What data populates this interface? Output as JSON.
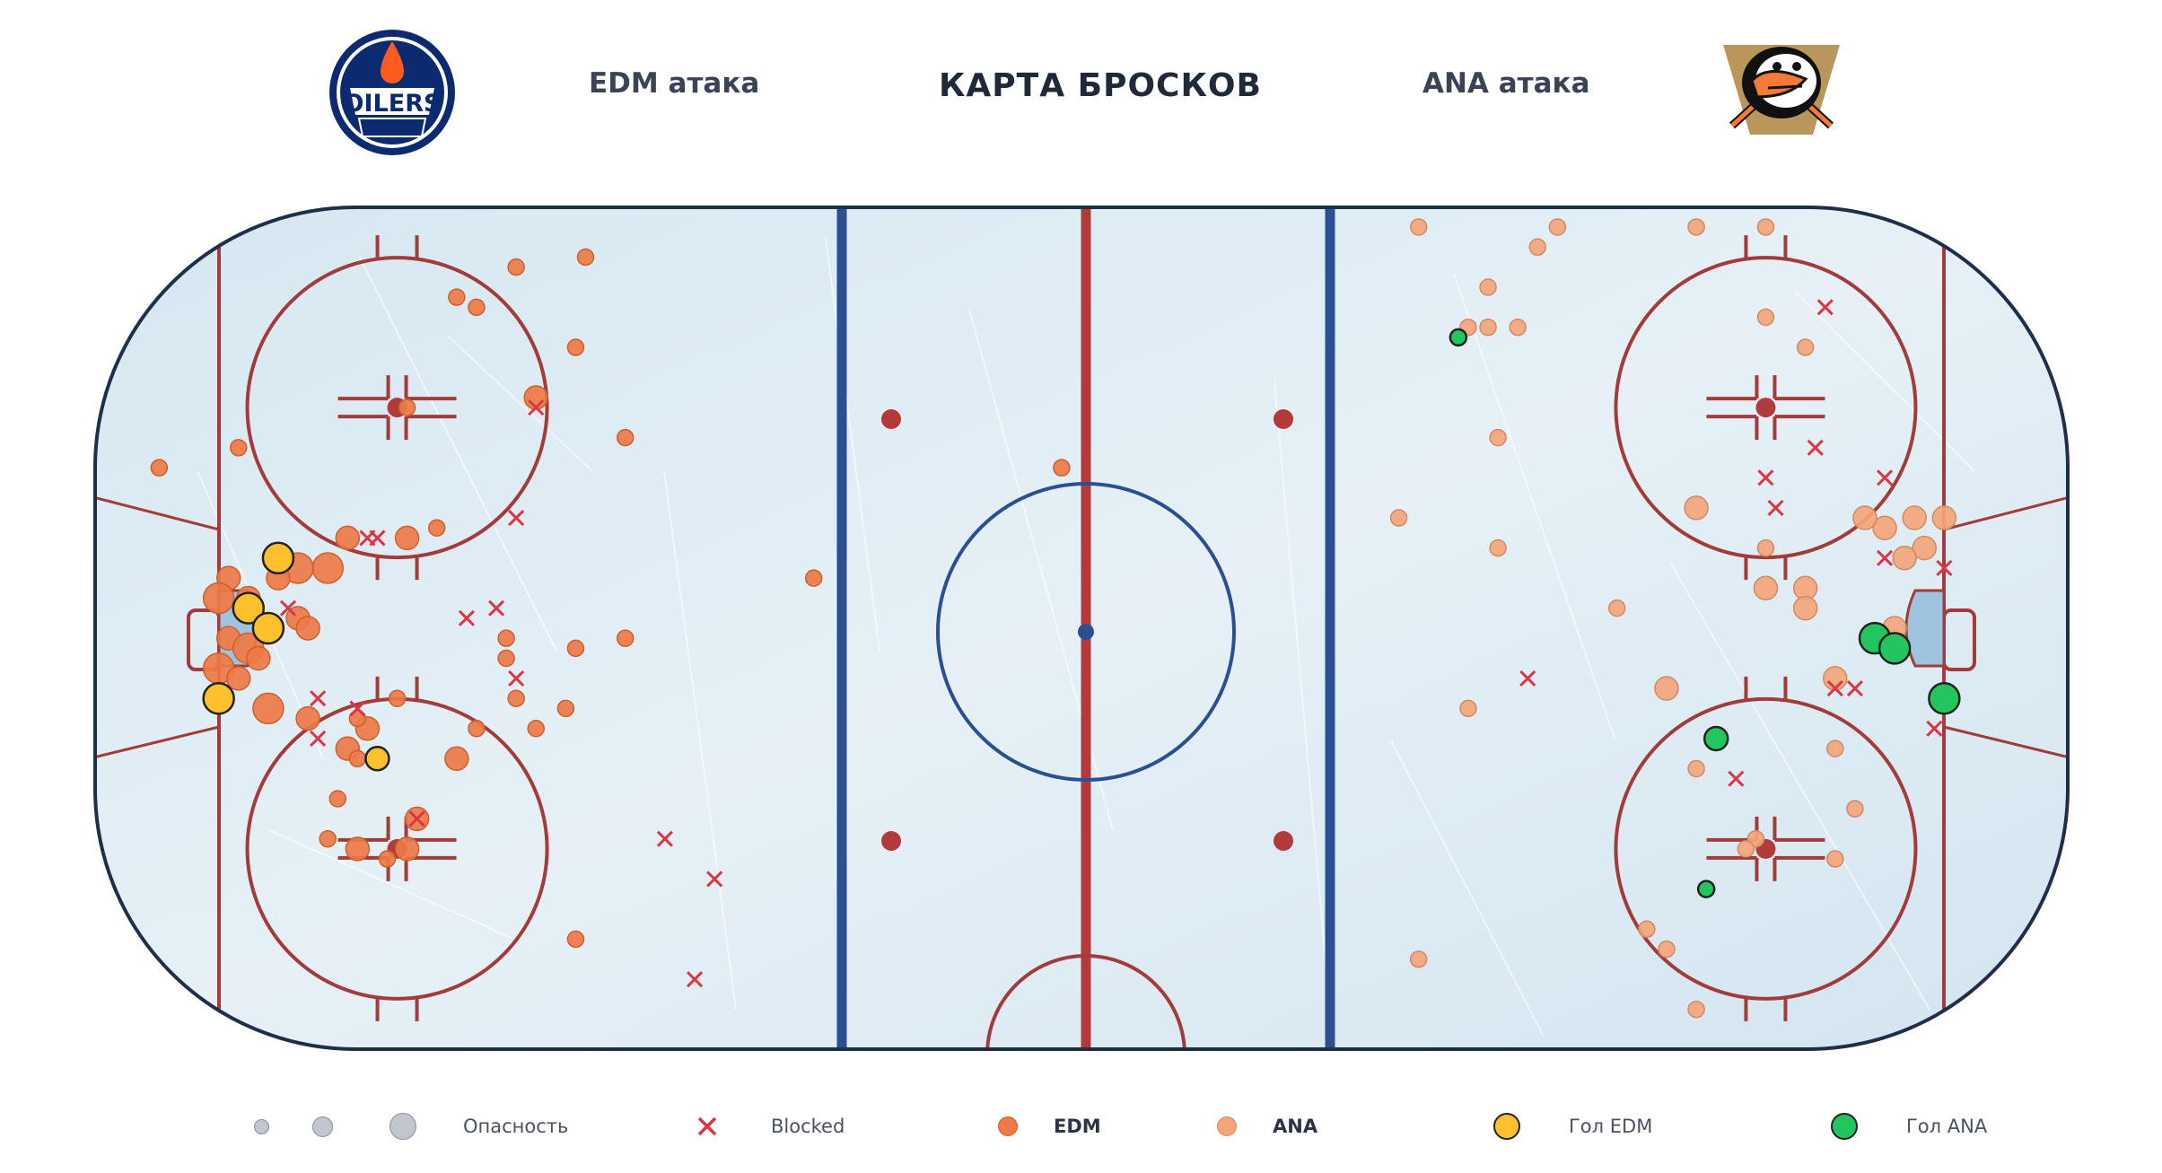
{
  "header": {
    "left_label": "EDM атака",
    "title": "КАРТА БРОСКОВ",
    "right_label": "ANA атака",
    "left_logo": {
      "icon": "oilers-logo",
      "text": "OILERS"
    },
    "right_logo": {
      "icon": "ducks-logo"
    }
  },
  "legend": {
    "danger_label": "Опасность",
    "blocked_label": "Blocked",
    "edm_label": "EDM",
    "ana_label": "ANA",
    "goal_edm_label": "Гол EDM",
    "goal_ana_label": "Гол ANA"
  },
  "colors": {
    "edm_shot": "#ee7a45",
    "ana_shot": "#f4a57a",
    "goal_edm": "#ffc02e",
    "goal_ana": "#22c55e",
    "blocked": "#dc3545",
    "red_line": "#b23a3a",
    "blue_line": "#2a4f93",
    "board": "#1f2f4a",
    "ice": "#dbe9f2"
  },
  "chart_data": {
    "type": "scatter",
    "title": "КАРТА БРОСКОВ",
    "xlabel": "",
    "ylabel": "",
    "xlim": [
      -100,
      100
    ],
    "ylim": [
      -42.5,
      42.5
    ],
    "grid": false,
    "legend_position": "bottom",
    "series": [
      {
        "name": "EDM",
        "marker": "circle",
        "points": [
          [
            -93,
            16,
            1
          ],
          [
            -85,
            18,
            1
          ],
          [
            -68,
            22,
            1
          ],
          [
            -55,
            23,
            2
          ],
          [
            -61,
            32,
            1
          ],
          [
            -63,
            33,
            1
          ],
          [
            -57,
            36,
            1
          ],
          [
            -50,
            37,
            1
          ],
          [
            -51,
            28,
            1
          ],
          [
            -46,
            19,
            1
          ],
          [
            -65,
            10,
            1
          ],
          [
            -68,
            9,
            2
          ],
          [
            -74,
            9,
            2
          ],
          [
            -76,
            6,
            3
          ],
          [
            -79,
            6,
            3
          ],
          [
            -81,
            5,
            2
          ],
          [
            -86,
            5,
            2
          ],
          [
            -84,
            3,
            2
          ],
          [
            -87,
            3,
            3
          ],
          [
            -79,
            1,
            2
          ],
          [
            -78,
            0,
            2
          ],
          [
            -86,
            -1,
            2
          ],
          [
            -84,
            -2,
            3
          ],
          [
            -83,
            -3,
            2
          ],
          [
            -87,
            -4,
            3
          ],
          [
            -85,
            -5,
            2
          ],
          [
            -82,
            -8,
            3
          ],
          [
            -78,
            -9,
            2
          ],
          [
            -72,
            -10,
            2
          ],
          [
            -73,
            -9,
            1
          ],
          [
            -69,
            -7,
            1
          ],
          [
            -74,
            -12,
            2
          ],
          [
            -73,
            -13,
            1
          ],
          [
            -75,
            -17,
            1
          ],
          [
            -73,
            -22,
            2
          ],
          [
            -67,
            -19,
            2
          ],
          [
            -63,
            -13,
            2
          ],
          [
            -61,
            -10,
            1
          ],
          [
            -58,
            -3,
            1
          ],
          [
            -58,
            -1,
            1
          ],
          [
            -51,
            -2,
            1
          ],
          [
            -46,
            -1,
            1
          ],
          [
            -57,
            -7,
            1
          ],
          [
            -52,
            -8,
            1
          ],
          [
            -55,
            -10,
            1
          ],
          [
            -76,
            -21,
            1
          ],
          [
            -68,
            -22,
            2
          ],
          [
            -70,
            -23,
            1
          ],
          [
            -51,
            -31,
            1
          ],
          [
            -27,
            5,
            1
          ],
          [
            -2,
            16,
            1
          ]
        ]
      },
      {
        "name": "ANA",
        "marker": "circle",
        "points": [
          [
            34,
            40,
            1
          ],
          [
            46,
            38,
            1
          ],
          [
            41,
            34,
            1
          ],
          [
            44,
            30,
            1
          ],
          [
            48,
            40,
            1
          ],
          [
            62,
            40,
            1
          ],
          [
            69,
            40,
            1
          ],
          [
            69,
            31,
            1
          ],
          [
            73,
            28,
            1
          ],
          [
            41,
            30,
            1
          ],
          [
            39,
            30,
            1
          ],
          [
            42,
            19,
            1
          ],
          [
            32,
            11,
            1
          ],
          [
            42,
            8,
            1
          ],
          [
            54,
            2,
            1
          ],
          [
            39,
            -8,
            1
          ],
          [
            62,
            12,
            2
          ],
          [
            69,
            8,
            1
          ],
          [
            69,
            4,
            2
          ],
          [
            73,
            4,
            2
          ],
          [
            73,
            2,
            2
          ],
          [
            81,
            10,
            2
          ],
          [
            79,
            11,
            2
          ],
          [
            84,
            11,
            2
          ],
          [
            87,
            11,
            2
          ],
          [
            85,
            8,
            2
          ],
          [
            83,
            7,
            2
          ],
          [
            82,
            0,
            2
          ],
          [
            76,
            -5,
            2
          ],
          [
            59,
            -6,
            2
          ],
          [
            76,
            -12,
            1
          ],
          [
            78,
            -18,
            1
          ],
          [
            62,
            -14,
            1
          ],
          [
            68,
            -21,
            1
          ],
          [
            67,
            -22,
            1
          ],
          [
            76,
            -23,
            1
          ],
          [
            57,
            -30,
            1
          ],
          [
            59,
            -32,
            1
          ],
          [
            34,
            -33,
            1
          ],
          [
            62,
            -38,
            1
          ]
        ]
      },
      {
        "name": "Гол EDM",
        "marker": "circle",
        "points": [
          [
            -81,
            7,
            3
          ],
          [
            -84,
            2,
            3
          ],
          [
            -82,
            0,
            3
          ],
          [
            -87,
            -7,
            3
          ],
          [
            -71,
            -13,
            2
          ]
        ]
      },
      {
        "name": "Гол ANA",
        "marker": "circle",
        "points": [
          [
            38,
            29,
            1
          ],
          [
            80,
            -1,
            3
          ],
          [
            82,
            -2,
            3
          ],
          [
            87,
            -7,
            3
          ],
          [
            64,
            -11,
            2
          ],
          [
            63,
            -26,
            1
          ]
        ]
      },
      {
        "name": "Blocked",
        "marker": "x",
        "points": [
          [
            -71,
            9
          ],
          [
            -72,
            9
          ],
          [
            -57,
            11
          ],
          [
            -62,
            1
          ],
          [
            -59,
            2
          ],
          [
            -80,
            2
          ],
          [
            -57,
            -5
          ],
          [
            -77,
            -7
          ],
          [
            -73,
            -8
          ],
          [
            -77,
            -11
          ],
          [
            -67,
            -19
          ],
          [
            -42,
            -21
          ],
          [
            -37,
            -25
          ],
          [
            -39,
            -35
          ],
          [
            -55,
            22
          ],
          [
            75,
            32
          ],
          [
            69,
            15
          ],
          [
            70,
            12
          ],
          [
            81,
            15
          ],
          [
            81,
            7
          ],
          [
            87,
            6
          ],
          [
            45,
            -5
          ],
          [
            76,
            -6
          ],
          [
            78,
            -6
          ],
          [
            86,
            -10
          ],
          [
            66,
            -15
          ],
          [
            74,
            18
          ]
        ]
      },
      {
        "name": "Опасность",
        "marker": "size",
        "points": [
          [
            1
          ],
          [
            2
          ],
          [
            3
          ]
        ]
      }
    ]
  }
}
